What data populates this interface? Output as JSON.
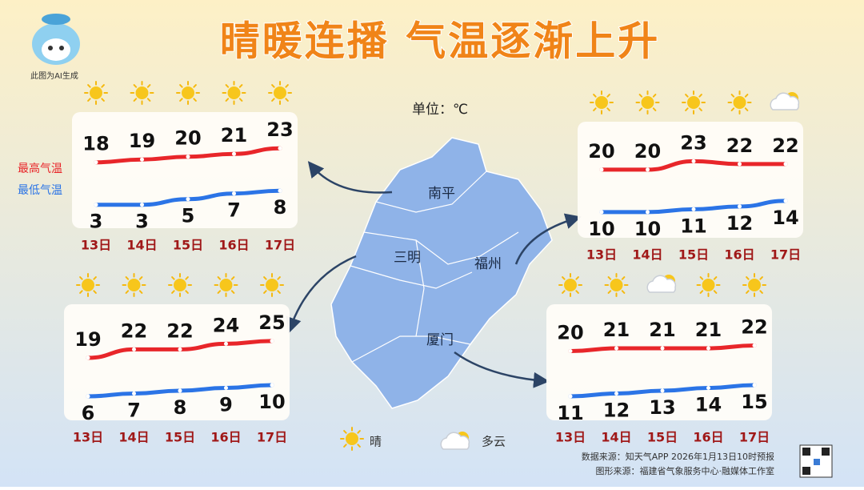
{
  "title": "晴暖连播 气温逐渐上升",
  "ai_note": "此图为AI生成",
  "unit": "单位：℃",
  "legend": [
    {
      "name": "最高气温",
      "color": "#e8262a"
    },
    {
      "name": "最低气温",
      "color": "#2b74e6"
    }
  ],
  "weather_legend": [
    "晴",
    "多云"
  ],
  "source_data": "数据来源：知天气APP 2026年1月13日10时预报",
  "source_graphic": "图形来源：福建省气象服务中心·融媒体工作室",
  "chart_data": [
    {
      "type": "line",
      "city": "南平",
      "categories": [
        "13日",
        "14日",
        "15日",
        "16日",
        "17日"
      ],
      "weather": [
        "晴",
        "晴",
        "晴",
        "晴",
        "晴"
      ],
      "series": [
        {
          "values": [
            18,
            19,
            20,
            21,
            23
          ]
        },
        {
          "values": [
            3,
            3,
            5,
            7,
            8
          ]
        }
      ]
    },
    {
      "type": "line",
      "city": "福州",
      "categories": [
        "13日",
        "14日",
        "15日",
        "16日",
        "17日"
      ],
      "weather": [
        "晴",
        "晴",
        "晴",
        "晴",
        "多云"
      ],
      "series": [
        {
          "values": [
            20,
            20,
            23,
            22,
            22
          ]
        },
        {
          "values": [
            10,
            10,
            11,
            12,
            14
          ]
        }
      ]
    },
    {
      "type": "line",
      "city": "三明",
      "categories": [
        "13日",
        "14日",
        "15日",
        "16日",
        "17日"
      ],
      "weather": [
        "晴",
        "晴",
        "晴",
        "晴",
        "晴"
      ],
      "series": [
        {
          "values": [
            19,
            22,
            22,
            24,
            25
          ]
        },
        {
          "values": [
            6,
            7,
            8,
            9,
            10
          ]
        }
      ]
    },
    {
      "type": "line",
      "city": "厦门",
      "categories": [
        "13日",
        "14日",
        "15日",
        "16日",
        "17日"
      ],
      "weather": [
        "晴",
        "晴",
        "多云",
        "晴",
        "晴"
      ],
      "series": [
        {
          "values": [
            20,
            21,
            21,
            21,
            22
          ]
        },
        {
          "values": [
            11,
            12,
            13,
            14,
            15
          ]
        }
      ]
    }
  ]
}
